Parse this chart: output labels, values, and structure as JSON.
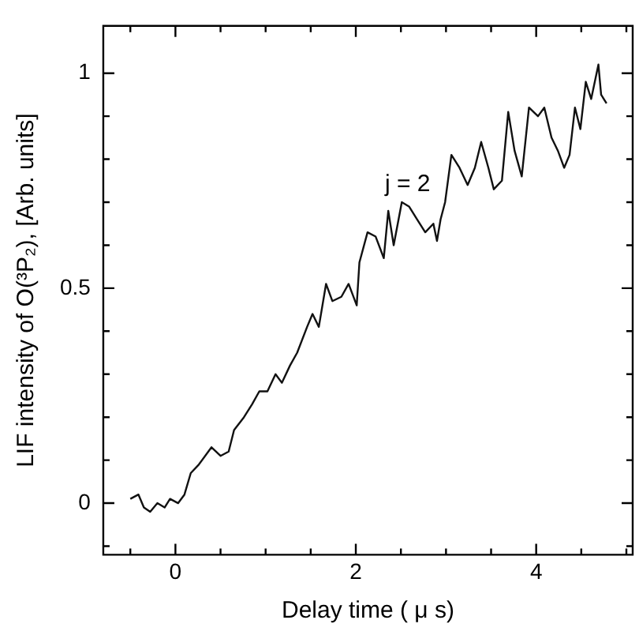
{
  "chart_data": {
    "type": "line",
    "xlabel": "Delay time ( μ s)",
    "ylabel": "LIF intensity of O(³P₂), [Arb. units]",
    "xlim": [
      -0.8,
      5.07
    ],
    "ylim": [
      -0.12,
      1.11
    ],
    "xticks": [
      {
        "value": -0.5,
        "label": null
      },
      0,
      {
        "value": 0.5,
        "label": null
      },
      {
        "value": 1,
        "label": null
      },
      {
        "value": 1.5,
        "label": null
      },
      2,
      {
        "value": 2.5,
        "label": null
      },
      {
        "value": 3,
        "label": null
      },
      {
        "value": 3.5,
        "label": null
      },
      4,
      {
        "value": 4.5,
        "label": null
      },
      {
        "value": 5,
        "label": null
      }
    ],
    "yticks": [
      {
        "value": -0.1,
        "label": null
      },
      0,
      {
        "value": 0.1,
        "label": null
      },
      {
        "value": 0.2,
        "label": null
      },
      {
        "value": 0.3,
        "label": null
      },
      {
        "value": 0.4,
        "label": null
      },
      0.5,
      {
        "value": 0.6,
        "label": null
      },
      {
        "value": 0.7,
        "label": null
      },
      {
        "value": 0.8,
        "label": null
      },
      {
        "value": 0.9,
        "label": null
      },
      1
    ],
    "grid": false,
    "legend": false,
    "marker": "none",
    "line_style": "solid",
    "annotations": [
      "j = 2"
    ],
    "series": [
      {
        "color": "#111111",
        "x": [
          -0.5,
          -0.41,
          -0.35,
          -0.28,
          -0.2,
          -0.12,
          -0.06,
          0.03,
          0.1,
          0.17,
          0.26,
          0.4,
          0.5,
          0.59,
          0.65,
          0.76,
          0.85,
          0.93,
          1.02,
          1.11,
          1.18,
          1.27,
          1.35,
          1.46,
          1.52,
          1.59,
          1.67,
          1.74,
          1.84,
          1.92,
          2.01,
          2.04,
          2.13,
          2.22,
          2.31,
          2.36,
          2.42,
          2.51,
          2.59,
          2.68,
          2.77,
          2.86,
          2.9,
          2.94,
          2.99,
          3.06,
          3.15,
          3.24,
          3.32,
          3.39,
          3.47,
          3.53,
          3.62,
          3.69,
          3.76,
          3.84,
          3.92,
          4.02,
          4.09,
          4.17,
          4.24,
          4.31,
          4.37,
          4.43,
          4.49,
          4.55,
          4.61,
          4.69,
          4.72,
          4.78
        ],
        "values": [
          0.01,
          0.02,
          -0.01,
          -0.02,
          0,
          -0.01,
          0.01,
          0,
          0.02,
          0.07,
          0.09,
          0.13,
          0.11,
          0.12,
          0.17,
          0.2,
          0.23,
          0.26,
          0.26,
          0.3,
          0.28,
          0.32,
          0.35,
          0.41,
          0.44,
          0.41,
          0.51,
          0.47,
          0.48,
          0.51,
          0.46,
          0.56,
          0.63,
          0.62,
          0.57,
          0.68,
          0.6,
          0.7,
          0.69,
          0.66,
          0.63,
          0.65,
          0.61,
          0.66,
          0.7,
          0.81,
          0.78,
          0.74,
          0.78,
          0.84,
          0.78,
          0.73,
          0.75,
          0.91,
          0.82,
          0.76,
          0.92,
          0.9,
          0.92,
          0.85,
          0.82,
          0.78,
          0.81,
          0.92,
          0.87,
          0.98,
          0.94,
          1.02,
          0.95,
          0.93
        ]
      }
    ]
  }
}
